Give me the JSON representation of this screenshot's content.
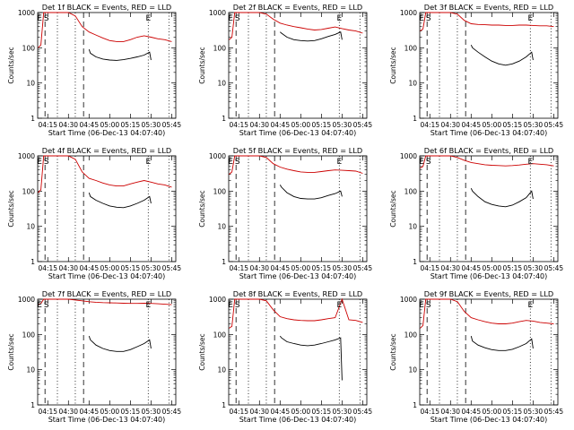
{
  "colors": {
    "events": "#000000",
    "lld": "#cc0000",
    "axis": "#000000"
  },
  "common": {
    "xlabel": "Start Time (06-Dec-13 04:07:40)",
    "ylabel": "Counts/sec",
    "x_tick_labels": [
      "04:15",
      "04:30",
      "04:45",
      "05:00",
      "05:15",
      "05:30",
      "05:45"
    ],
    "y_tick_labels": [
      "1",
      "10",
      "100",
      "1000"
    ],
    "y_scale": "log",
    "ylim": [
      1,
      1000
    ],
    "xlim": [
      "04:07:40",
      "05:48:00"
    ]
  },
  "chart_data": [
    {
      "type": "line",
      "title": "Det 1f BLACK = Events, RED = LLD",
      "markers": [
        "E",
        "S",
        "E"
      ],
      "series": [
        {
          "name": "Events",
          "color": "#000000",
          "x": [
            "04:45",
            "04:46",
            "04:50",
            "04:55",
            "05:00",
            "05:05",
            "05:10",
            "05:15",
            "05:20",
            "05:25",
            "05:29",
            "05:30"
          ],
          "values": [
            90,
            70,
            55,
            48,
            45,
            44,
            46,
            50,
            55,
            62,
            75,
            45
          ]
        },
        {
          "name": "LLD",
          "color": "#cc0000",
          "x": [
            "04:08",
            "04:10",
            "04:12",
            "04:13",
            "04:15",
            "04:20",
            "04:25",
            "04:30",
            "04:35",
            "04:40",
            "04:45",
            "04:50",
            "04:55",
            "05:00",
            "05:05",
            "05:10",
            "05:15",
            "05:20",
            "05:25",
            "05:30",
            "05:35",
            "05:40",
            "05:45"
          ],
          "values": [
            100,
            120,
            1000,
            1000,
            1000,
            1000,
            1000,
            1000,
            800,
            400,
            280,
            230,
            190,
            160,
            150,
            150,
            170,
            200,
            220,
            200,
            180,
            170,
            150
          ]
        }
      ]
    },
    {
      "type": "line",
      "title": "Det 2f BLACK = Events, RED = LLD",
      "markers": [
        "E",
        "S",
        "E"
      ],
      "series": [
        {
          "name": "Events",
          "color": "#000000",
          "x": [
            "04:45",
            "04:46",
            "04:50",
            "04:55",
            "05:00",
            "05:05",
            "05:10",
            "05:15",
            "05:20",
            "05:25",
            "05:29",
            "05:30"
          ],
          "values": [
            280,
            260,
            200,
            170,
            160,
            155,
            160,
            180,
            210,
            240,
            280,
            170
          ]
        },
        {
          "name": "LLD",
          "color": "#cc0000",
          "x": [
            "04:08",
            "04:10",
            "04:12",
            "04:13",
            "04:15",
            "04:20",
            "04:25",
            "04:30",
            "04:35",
            "04:40",
            "04:45",
            "04:50",
            "04:55",
            "05:00",
            "05:05",
            "05:10",
            "05:15",
            "05:20",
            "05:25",
            "05:30",
            "05:35",
            "05:40",
            "05:45"
          ],
          "values": [
            170,
            200,
            1000,
            1000,
            1000,
            1000,
            1000,
            1000,
            900,
            650,
            500,
            440,
            400,
            370,
            340,
            320,
            330,
            360,
            390,
            350,
            320,
            300,
            260
          ]
        }
      ]
    },
    {
      "type": "line",
      "title": "Det 3f BLACK = Events, RED = LLD",
      "markers": [
        "E",
        "S",
        "E"
      ],
      "series": [
        {
          "name": "Events",
          "color": "#000000",
          "x": [
            "04:45",
            "04:46",
            "04:50",
            "04:55",
            "05:00",
            "05:05",
            "05:10",
            "05:15",
            "05:20",
            "05:25",
            "05:29",
            "05:30"
          ],
          "values": [
            120,
            100,
            75,
            55,
            42,
            35,
            32,
            35,
            42,
            55,
            75,
            45
          ]
        },
        {
          "name": "LLD",
          "color": "#cc0000",
          "x": [
            "04:08",
            "04:10",
            "04:12",
            "04:13",
            "04:15",
            "04:20",
            "04:25",
            "04:30",
            "04:35",
            "04:40",
            "04:45",
            "04:50",
            "04:55",
            "05:00",
            "05:05",
            "05:10",
            "05:15",
            "05:20",
            "05:25",
            "05:30",
            "05:35",
            "05:40",
            "05:45"
          ],
          "values": [
            300,
            340,
            1000,
            1000,
            1000,
            1000,
            1000,
            1000,
            900,
            600,
            480,
            460,
            450,
            440,
            440,
            430,
            430,
            440,
            440,
            430,
            420,
            420,
            400
          ]
        }
      ]
    },
    {
      "type": "line",
      "title": "Det 4f BLACK = Events, RED = LLD",
      "markers": [
        "E",
        "S",
        "E"
      ],
      "series": [
        {
          "name": "Events",
          "color": "#000000",
          "x": [
            "04:45",
            "04:46",
            "04:50",
            "04:55",
            "05:00",
            "05:05",
            "05:10",
            "05:15",
            "05:20",
            "05:25",
            "05:29",
            "05:30"
          ],
          "values": [
            90,
            70,
            55,
            45,
            38,
            35,
            34,
            38,
            45,
            55,
            70,
            45
          ]
        },
        {
          "name": "LLD",
          "color": "#cc0000",
          "x": [
            "04:08",
            "04:10",
            "04:12",
            "04:13",
            "04:15",
            "04:20",
            "04:25",
            "04:30",
            "04:35",
            "04:40",
            "04:45",
            "04:50",
            "04:55",
            "05:00",
            "05:05",
            "05:10",
            "05:15",
            "05:20",
            "05:25",
            "05:30",
            "05:35",
            "05:40",
            "05:45"
          ],
          "values": [
            90,
            110,
            1000,
            1000,
            1000,
            1000,
            1000,
            1000,
            800,
            350,
            230,
            200,
            170,
            150,
            140,
            140,
            160,
            180,
            200,
            180,
            160,
            150,
            130
          ]
        }
      ]
    },
    {
      "type": "line",
      "title": "Det 5f BLACK = Events, RED = LLD",
      "markers": [
        "E",
        "S",
        "E"
      ],
      "series": [
        {
          "name": "Events",
          "color": "#000000",
          "x": [
            "04:45",
            "04:46",
            "04:50",
            "04:55",
            "05:00",
            "05:05",
            "05:10",
            "05:15",
            "05:20",
            "05:25",
            "05:29",
            "05:30"
          ],
          "values": [
            150,
            130,
            90,
            70,
            62,
            60,
            60,
            65,
            75,
            85,
            100,
            70
          ]
        },
        {
          "name": "LLD",
          "color": "#cc0000",
          "x": [
            "04:08",
            "04:10",
            "04:12",
            "04:13",
            "04:15",
            "04:20",
            "04:25",
            "04:30",
            "04:35",
            "04:40",
            "04:45",
            "04:50",
            "04:55",
            "05:00",
            "05:05",
            "05:10",
            "05:15",
            "05:20",
            "05:25",
            "05:30",
            "05:35",
            "05:40",
            "05:45"
          ],
          "values": [
            300,
            350,
            1000,
            1000,
            1000,
            1000,
            1000,
            1000,
            900,
            600,
            480,
            420,
            380,
            350,
            340,
            340,
            360,
            380,
            400,
            390,
            380,
            370,
            320
          ]
        }
      ]
    },
    {
      "type": "line",
      "title": "Det 6f BLACK = Events, RED = LLD",
      "markers": [
        "E",
        "S",
        "E"
      ],
      "series": [
        {
          "name": "Events",
          "color": "#000000",
          "x": [
            "04:45",
            "04:46",
            "04:50",
            "04:55",
            "05:00",
            "05:05",
            "05:10",
            "05:15",
            "05:20",
            "05:25",
            "05:29",
            "05:30"
          ],
          "values": [
            120,
            100,
            70,
            50,
            42,
            38,
            36,
            40,
            50,
            65,
            100,
            60
          ]
        },
        {
          "name": "LLD",
          "color": "#cc0000",
          "x": [
            "04:08",
            "04:10",
            "04:12",
            "04:13",
            "04:15",
            "04:20",
            "04:25",
            "04:30",
            "04:35",
            "04:40",
            "04:45",
            "04:50",
            "04:55",
            "05:00",
            "05:05",
            "05:10",
            "05:15",
            "05:20",
            "05:25",
            "05:30",
            "05:35",
            "05:40",
            "05:45"
          ],
          "values": [
            450,
            500,
            1000,
            1000,
            1000,
            1000,
            1000,
            1000,
            900,
            750,
            650,
            600,
            560,
            540,
            530,
            520,
            530,
            550,
            580,
            600,
            580,
            560,
            520
          ]
        }
      ]
    },
    {
      "type": "line",
      "title": "Det 7f BLACK = Events, RED = LLD",
      "markers": [
        "E",
        "S",
        "E"
      ],
      "series": [
        {
          "name": "Events",
          "color": "#000000",
          "x": [
            "04:45",
            "04:46",
            "04:50",
            "04:55",
            "05:00",
            "05:05",
            "05:10",
            "05:15",
            "05:20",
            "05:25",
            "05:29",
            "05:30"
          ],
          "values": [
            90,
            70,
            50,
            40,
            35,
            33,
            33,
            37,
            45,
            55,
            70,
            40
          ]
        },
        {
          "name": "LLD",
          "color": "#cc0000",
          "x": [
            "04:08",
            "04:10",
            "04:12",
            "04:13",
            "04:15",
            "04:20",
            "04:25",
            "04:30",
            "04:35",
            "04:40",
            "04:45",
            "04:50",
            "04:55",
            "05:00",
            "05:05",
            "05:10",
            "05:15",
            "05:20",
            "05:25",
            "05:30",
            "05:35",
            "05:40",
            "05:45"
          ],
          "values": [
            700,
            750,
            1000,
            1000,
            1000,
            1000,
            1000,
            1000,
            950,
            900,
            850,
            820,
            800,
            790,
            780,
            770,
            760,
            760,
            770,
            760,
            740,
            720,
            700
          ]
        }
      ]
    },
    {
      "type": "line",
      "title": "Det 8f BLACK = Events, RED = LLD",
      "markers": [
        "E",
        "S",
        "E"
      ],
      "series": [
        {
          "name": "Events",
          "color": "#000000",
          "x": [
            "04:45",
            "04:46",
            "04:50",
            "04:55",
            "05:00",
            "05:05",
            "05:10",
            "05:15",
            "05:20",
            "05:25",
            "05:29",
            "05:30"
          ],
          "values": [
            90,
            80,
            62,
            55,
            50,
            48,
            50,
            55,
            62,
            70,
            80,
            5
          ]
        },
        {
          "name": "LLD",
          "color": "#cc0000",
          "x": [
            "04:08",
            "04:10",
            "04:12",
            "04:13",
            "04:15",
            "04:20",
            "04:25",
            "04:30",
            "04:35",
            "04:40",
            "04:45",
            "04:50",
            "04:55",
            "05:00",
            "05:05",
            "05:10",
            "05:15",
            "05:20",
            "05:25",
            "05:30",
            "05:35",
            "05:40",
            "05:45"
          ],
          "values": [
            150,
            170,
            1000,
            1000,
            1000,
            1000,
            1000,
            1000,
            900,
            500,
            320,
            280,
            260,
            250,
            245,
            245,
            260,
            280,
            300,
            1000,
            260,
            250,
            220
          ]
        }
      ]
    },
    {
      "type": "line",
      "title": "Det 9f BLACK = Events, RED = LLD",
      "markers": [
        "E",
        "S",
        "E"
      ],
      "series": [
        {
          "name": "Events",
          "color": "#000000",
          "x": [
            "04:45",
            "04:46",
            "04:50",
            "04:55",
            "05:00",
            "05:05",
            "05:10",
            "05:15",
            "05:20",
            "05:25",
            "05:29",
            "05:30"
          ],
          "values": [
            90,
            65,
            50,
            42,
            37,
            35,
            35,
            38,
            45,
            55,
            75,
            40
          ]
        },
        {
          "name": "LLD",
          "color": "#cc0000",
          "x": [
            "04:08",
            "04:10",
            "04:12",
            "04:13",
            "04:15",
            "04:20",
            "04:25",
            "04:30",
            "04:35",
            "04:40",
            "04:45",
            "04:50",
            "04:55",
            "05:00",
            "05:05",
            "05:10",
            "05:15",
            "05:20",
            "05:25",
            "05:30",
            "05:35",
            "05:40",
            "05:45"
          ],
          "values": [
            150,
            180,
            1000,
            1000,
            1000,
            1000,
            1000,
            1000,
            850,
            450,
            300,
            260,
            230,
            210,
            200,
            200,
            210,
            230,
            250,
            240,
            220,
            210,
            200
          ]
        }
      ]
    }
  ]
}
